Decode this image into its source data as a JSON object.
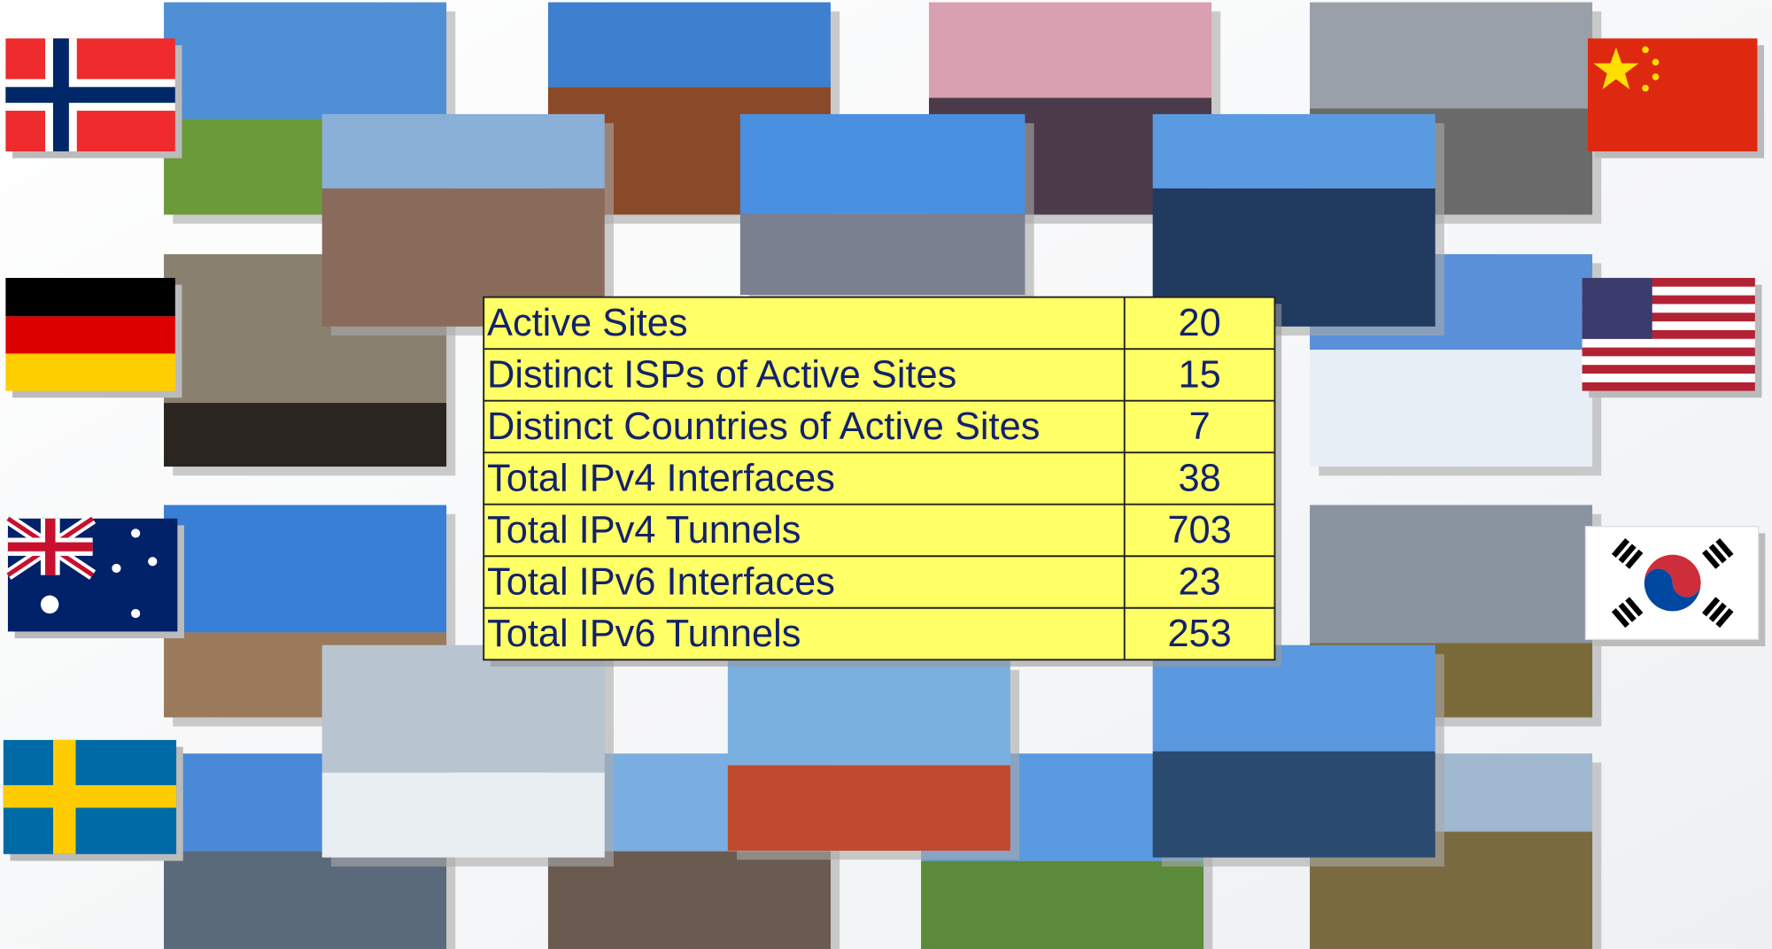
{
  "table": {
    "rows": [
      [
        "Active Sites",
        20
      ],
      [
        "Distinct ISPs of Active Sites",
        15
      ],
      [
        "Distinct Countries of Active Sites",
        7
      ],
      [
        "Total IPv4 Interfaces",
        38
      ],
      [
        "Total IPv4 Tunnels",
        703
      ],
      [
        "Total IPv6 Interfaces",
        23
      ],
      [
        "Total IPv6 Tunnels",
        253
      ]
    ]
  }
}
